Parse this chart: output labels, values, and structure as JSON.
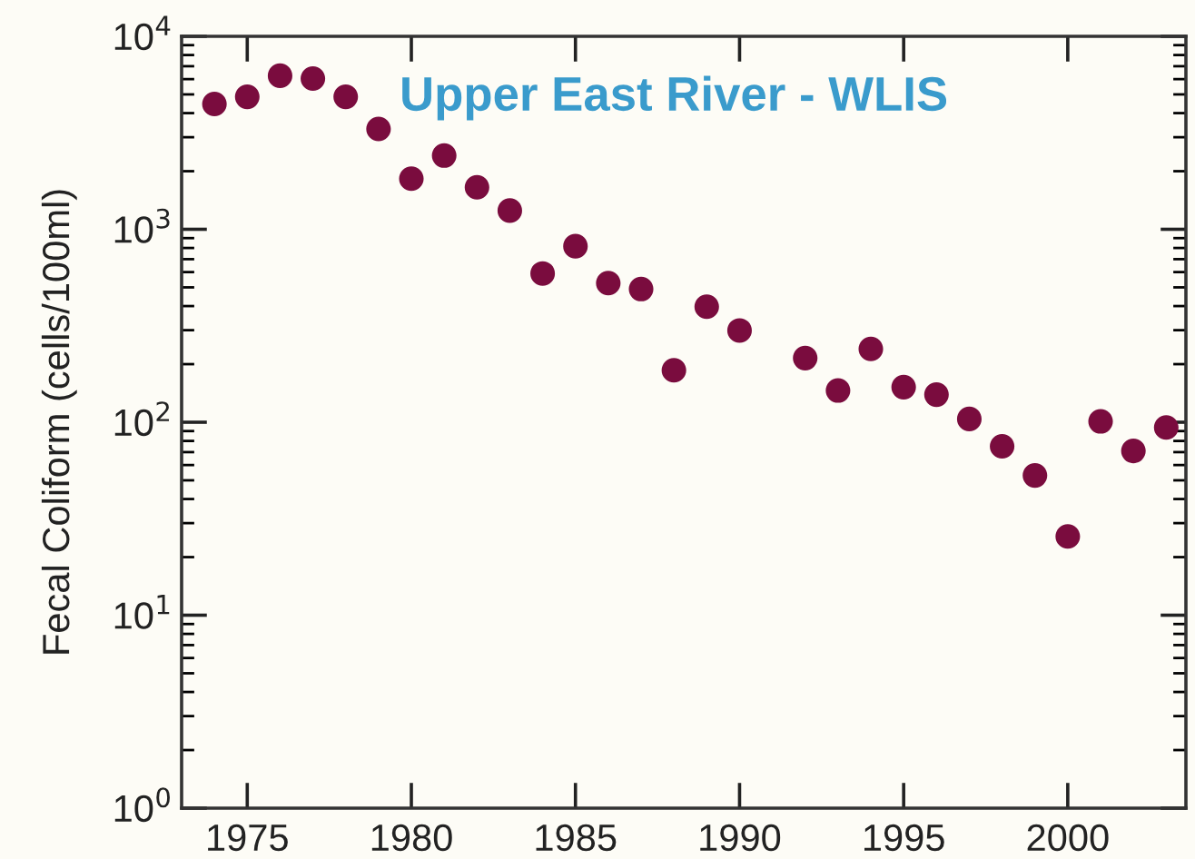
{
  "chart_data": {
    "type": "scatter",
    "title": "Upper East River - WLIS",
    "ylabel": "Fecal Coliform (cells/100ml)",
    "x": [
      1974,
      1975,
      1976,
      1977,
      1978,
      1979,
      1980,
      1981,
      1982,
      1983,
      1984,
      1985,
      1986,
      1987,
      1988,
      1989,
      1990,
      1992,
      1993,
      1994,
      1995,
      1996,
      1997,
      1998,
      1999,
      2000,
      2001,
      2002,
      2003
    ],
    "series": [
      {
        "color": "#7a0c3e",
        "values": [
          4460,
          4860,
          6250,
          6040,
          4860,
          3310,
          1830,
          2410,
          1650,
          1250,
          590,
          817,
          526,
          490,
          186,
          397,
          299,
          215,
          146,
          240,
          152,
          139,
          104,
          75,
          53,
          25.6,
          101,
          71,
          94
        ]
      }
    ],
    "log": "y",
    "xlim": [
      1973,
      2003.6
    ],
    "xticks": [
      1975,
      1980,
      1985,
      1990,
      1995,
      2000
    ],
    "ylim": [
      1,
      10000
    ],
    "yticks": [
      {
        "value": 1,
        "label": "10$^{0}$"
      },
      {
        "value": 10,
        "label": "10$^{1}$"
      },
      {
        "value": 100,
        "label": "10$^{2}$"
      },
      {
        "value": 1000,
        "label": "10$^{3}$"
      },
      {
        "value": 10000,
        "label": "10$^{4}$"
      }
    ],
    "marker": "circle",
    "grid": false,
    "legend": false
  }
}
